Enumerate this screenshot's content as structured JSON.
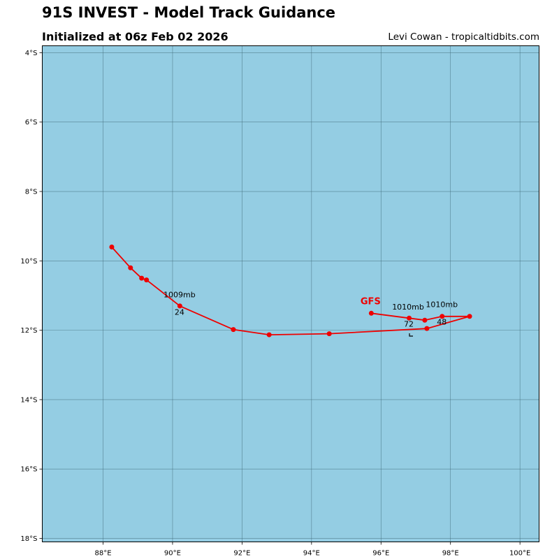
{
  "header": {
    "title": "91S INVEST - Model Track Guidance",
    "subtitle": "Initialized at 06z Feb 02 2026",
    "credit": "Levi Cowan - tropicaltidbits.com"
  },
  "colors": {
    "ocean": "#94cde3",
    "grid": "#3f6a78",
    "track": "#ee0000",
    "frame": "#000000"
  },
  "chart_data": {
    "type": "map-track",
    "lon_range": [
      86.25,
      100.55
    ],
    "lat_range": [
      -18.1,
      -3.8
    ],
    "lon_ticks": [
      {
        "value": 88,
        "label": "88°E"
      },
      {
        "value": 90,
        "label": "90°E"
      },
      {
        "value": 92,
        "label": "92°E"
      },
      {
        "value": 94,
        "label": "94°E"
      },
      {
        "value": 96,
        "label": "96°E"
      },
      {
        "value": 98,
        "label": "98°E"
      },
      {
        "value": 100,
        "label": "100°E"
      }
    ],
    "lat_ticks": [
      {
        "value": -4,
        "label": "4°S"
      },
      {
        "value": -6,
        "label": "6°S"
      },
      {
        "value": -8,
        "label": "8°S"
      },
      {
        "value": -10,
        "label": "10°S"
      },
      {
        "value": -12,
        "label": "12°S"
      },
      {
        "value": -14,
        "label": "14°S"
      },
      {
        "value": -16,
        "label": "16°S"
      },
      {
        "value": -18,
        "label": "18°S"
      }
    ],
    "series": [
      {
        "name": "GFS",
        "points": [
          {
            "lon": 95.72,
            "lat": -11.51
          },
          {
            "lon": 96.81,
            "lat": -11.65
          },
          {
            "lon": 97.26,
            "lat": -11.71
          },
          {
            "lon": 97.76,
            "lat": -11.6
          },
          {
            "lon": 98.55,
            "lat": -11.6
          },
          {
            "lon": 97.32,
            "lat": -11.95
          },
          {
            "lon": 94.51,
            "lat": -12.1
          },
          {
            "lon": 92.78,
            "lat": -12.13
          },
          {
            "lon": 91.75,
            "lat": -11.98
          },
          {
            "lon": 90.21,
            "lat": -11.3
          },
          {
            "lon": 89.25,
            "lat": -10.55
          },
          {
            "lon": 89.11,
            "lat": -10.5
          },
          {
            "lon": 88.79,
            "lat": -10.2
          },
          {
            "lon": 88.25,
            "lat": -9.6
          }
        ]
      }
    ],
    "annotations": [
      {
        "text": "GFS",
        "lon": 95.7,
        "lat": -11.25,
        "kind": "model"
      },
      {
        "text": "1010mb",
        "lon": 96.78,
        "lat": -11.4,
        "kind": "pressure"
      },
      {
        "text": "1010mb",
        "lon": 97.75,
        "lat": -11.33,
        "kind": "pressure"
      },
      {
        "text": "1009mb",
        "lon": 90.2,
        "lat": -11.05,
        "kind": "pressure"
      },
      {
        "text": "72",
        "lon": 96.8,
        "lat": -11.9,
        "kind": "hour"
      },
      {
        "text": "48",
        "lon": 97.75,
        "lat": -11.84,
        "kind": "hour"
      },
      {
        "text": "24",
        "lon": 90.2,
        "lat": -11.55,
        "kind": "hour"
      }
    ]
  }
}
